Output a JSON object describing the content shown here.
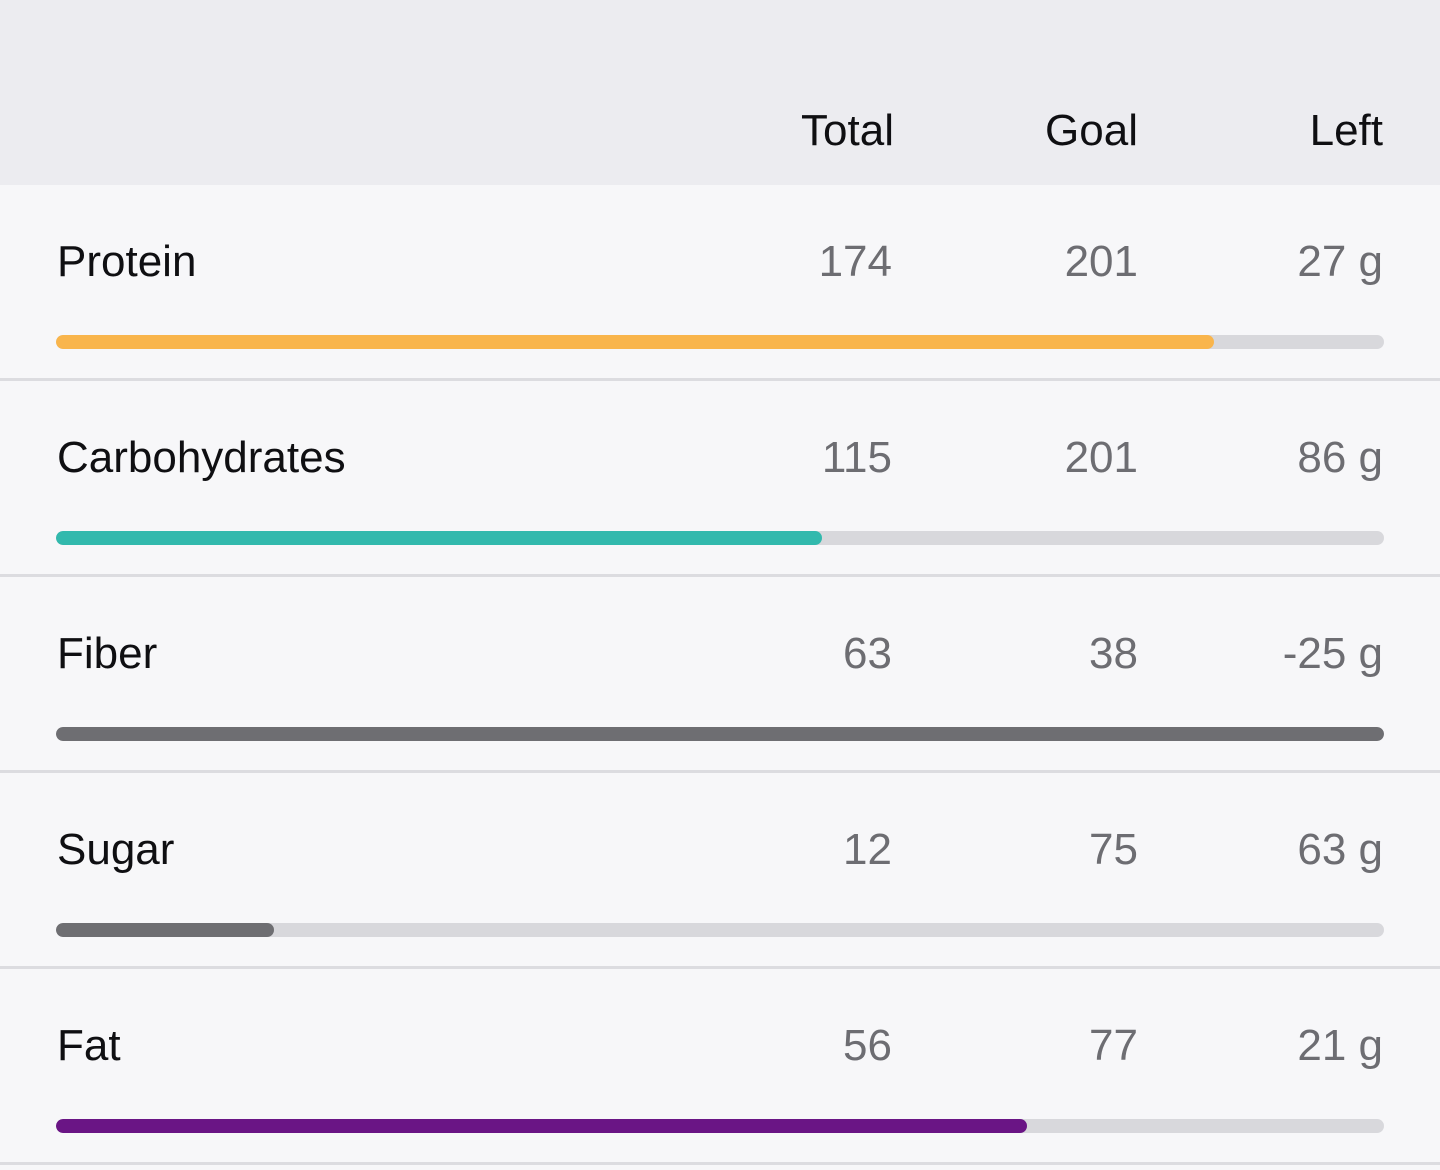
{
  "header": {
    "total": "Total",
    "goal": "Goal",
    "left": "Left"
  },
  "nutrients": [
    {
      "name": "Protein",
      "total": "174",
      "goal": "201",
      "left": "27 g",
      "progress": 0.872,
      "color": "#f9b54c"
    },
    {
      "name": "Carbohydrates",
      "total": "115",
      "goal": "201",
      "left": "86 g",
      "progress": 0.577,
      "color": "#32b9ad"
    },
    {
      "name": "Fiber",
      "total": "63",
      "goal": "38",
      "left": "-25 g",
      "progress": 1.0,
      "color": "#6e6e72"
    },
    {
      "name": "Sugar",
      "total": "12",
      "goal": "75",
      "left": "63 g",
      "progress": 0.164,
      "color": "#6e6e72"
    },
    {
      "name": "Fat",
      "total": "56",
      "goal": "77",
      "left": "21 g",
      "progress": 0.731,
      "color": "#6a1585"
    }
  ]
}
